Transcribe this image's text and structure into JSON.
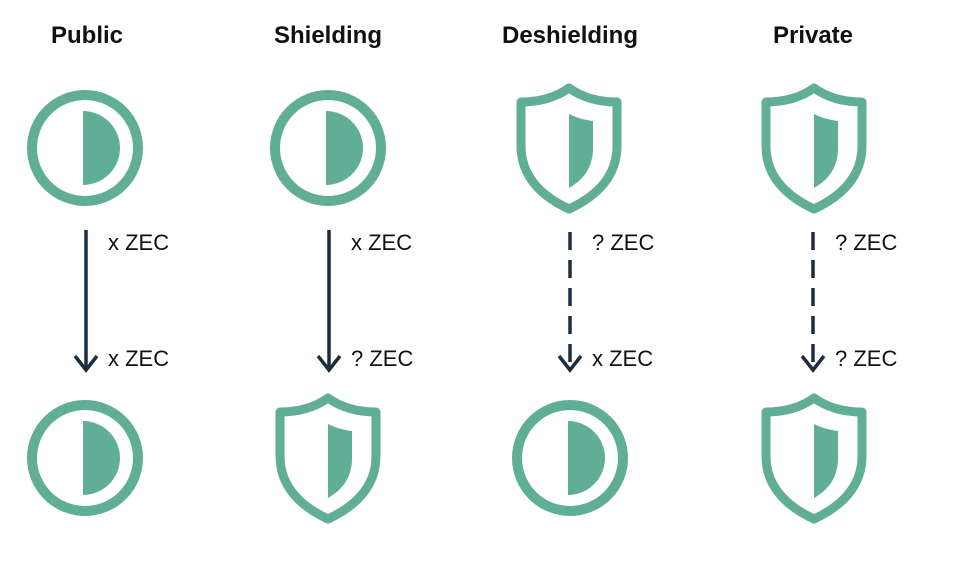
{
  "colors": {
    "accent": "#5fae95",
    "arrow": "#1c2d3f",
    "text": "#111111"
  },
  "columns": [
    {
      "title": "Public",
      "from_icon": "circle-half-icon",
      "to_icon": "circle-half-icon",
      "from_amount": "x ZEC",
      "to_amount": "x ZEC",
      "arrow_style": "solid"
    },
    {
      "title": "Shielding",
      "from_icon": "circle-half-icon",
      "to_icon": "shield-icon",
      "from_amount": "x ZEC",
      "to_amount": "? ZEC",
      "arrow_style": "solid"
    },
    {
      "title": "Deshielding",
      "from_icon": "shield-icon",
      "to_icon": "circle-half-icon",
      "from_amount": "? ZEC",
      "to_amount": "x ZEC",
      "arrow_style": "dashed"
    },
    {
      "title": "Private",
      "from_icon": "shield-icon",
      "to_icon": "shield-icon",
      "from_amount": "? ZEC",
      "to_amount": "? ZEC",
      "arrow_style": "dashed"
    }
  ]
}
